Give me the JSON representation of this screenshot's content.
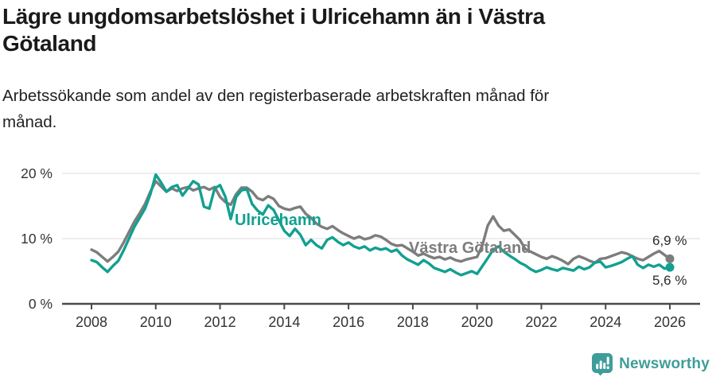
{
  "header": {
    "title": "Lägre ungdomsarbetslöshet i Ulricehamn än i Västra Götaland",
    "title_lines": [
      "Lägre ungdomsarbetslöshet i Ulricehamn än i Västra",
      "Götaland"
    ],
    "subtitle": "Arbetssökande som andel av den registerbaserade arbetskraften månad för månad.",
    "subtitle_lines": [
      "Arbetssökande som andel av den registerbaserade arbetskraften månad för",
      "månad."
    ]
  },
  "chart_data": {
    "type": "line",
    "title": "Lägre ungdomsarbetslöshet i Ulricehamn än i Västra Götaland",
    "subtitle": "Arbetssökande som andel av den registerbaserade arbetskraften månad för månad.",
    "x_range_years": [
      2008,
      2026
    ],
    "points_per_year": 6,
    "ylim": [
      0,
      22
    ],
    "grid": true,
    "legend_position": "inline-labels",
    "y_ticks": [
      {
        "value": 0,
        "label": "0 %"
      },
      {
        "value": 10,
        "label": "10 %"
      },
      {
        "value": 20,
        "label": "20 %"
      }
    ],
    "x_ticks": [
      {
        "year": 2008,
        "label": "2008"
      },
      {
        "year": 2010,
        "label": "2010"
      },
      {
        "year": 2012,
        "label": "2012"
      },
      {
        "year": 2014,
        "label": "2014"
      },
      {
        "year": 2016,
        "label": "2016"
      },
      {
        "year": 2018,
        "label": "2018"
      },
      {
        "year": 2020,
        "label": "2020"
      },
      {
        "year": 2022,
        "label": "2022"
      },
      {
        "year": 2024,
        "label": "2024"
      },
      {
        "year": 2026,
        "label": "2026"
      }
    ],
    "series": [
      {
        "name": "Västra Götaland",
        "color": "#7d7d7d",
        "end_label": "6,9 %",
        "end_value": 6.9,
        "values": [
          8.3,
          7.9,
          7.2,
          6.5,
          7.2,
          8.0,
          9.4,
          11.0,
          12.6,
          13.9,
          15.3,
          17.2,
          18.8,
          18.0,
          17.2,
          17.7,
          17.3,
          17.7,
          17.9,
          17.4,
          17.7,
          17.9,
          17.5,
          17.9,
          16.4,
          15.6,
          15.2,
          16.8,
          17.8,
          17.8,
          17.2,
          16.2,
          15.9,
          16.5,
          16.1,
          15.0,
          14.6,
          14.4,
          14.7,
          14.9,
          13.8,
          13.2,
          12.3,
          11.8,
          11.5,
          11.9,
          11.3,
          10.8,
          10.4,
          10.0,
          10.3,
          9.9,
          10.1,
          10.5,
          10.3,
          9.8,
          9.2,
          8.9,
          9.0,
          8.5,
          8.0,
          7.4,
          7.7,
          7.3,
          7.0,
          7.2,
          6.8,
          7.1,
          6.7,
          6.5,
          6.8,
          7.0,
          7.2,
          9.0,
          12.0,
          13.4,
          12.0,
          11.2,
          11.4,
          10.6,
          9.8,
          8.4,
          8.0,
          7.6,
          7.2,
          6.9,
          7.3,
          7.0,
          6.6,
          6.1,
          6.9,
          7.3,
          7.0,
          6.6,
          6.3,
          6.9,
          7.0,
          7.3,
          7.6,
          7.9,
          7.7,
          7.3,
          6.9,
          6.7,
          7.2,
          7.7,
          8.1,
          7.5,
          6.9
        ]
      },
      {
        "name": "Ulricehamn",
        "color": "#12a091",
        "end_label": "5,6 %",
        "end_value": 5.6,
        "values": [
          6.7,
          6.4,
          5.6,
          4.9,
          5.8,
          6.6,
          8.2,
          10.0,
          11.8,
          13.2,
          14.6,
          16.8,
          19.8,
          18.6,
          17.2,
          17.9,
          18.2,
          16.6,
          17.7,
          18.8,
          18.3,
          14.9,
          14.6,
          17.7,
          18.2,
          16.4,
          13.0,
          16.4,
          17.4,
          17.6,
          15.3,
          14.3,
          13.7,
          15.1,
          14.4,
          12.8,
          11.2,
          10.4,
          11.5,
          10.6,
          9.0,
          9.8,
          9.0,
          8.5,
          9.8,
          10.2,
          9.5,
          9.0,
          9.4,
          8.8,
          8.5,
          8.8,
          8.2,
          8.6,
          8.3,
          8.5,
          8.0,
          8.3,
          7.4,
          6.8,
          6.4,
          6.0,
          6.7,
          6.2,
          5.5,
          5.2,
          4.9,
          5.3,
          4.8,
          4.4,
          4.7,
          5.0,
          4.6,
          5.8,
          7.0,
          8.3,
          8.8,
          8.0,
          7.4,
          6.9,
          6.3,
          5.9,
          5.3,
          4.9,
          5.2,
          5.6,
          5.3,
          5.1,
          5.5,
          5.3,
          5.1,
          5.7,
          5.3,
          5.6,
          6.3,
          6.5,
          5.6,
          5.8,
          6.1,
          6.4,
          6.9,
          7.3,
          6.0,
          5.5,
          6.0,
          5.7,
          6.0,
          5.4,
          5.6
        ]
      }
    ]
  },
  "footer": {
    "brand": "Newsworthy",
    "brand_color": "#3f9d99"
  }
}
